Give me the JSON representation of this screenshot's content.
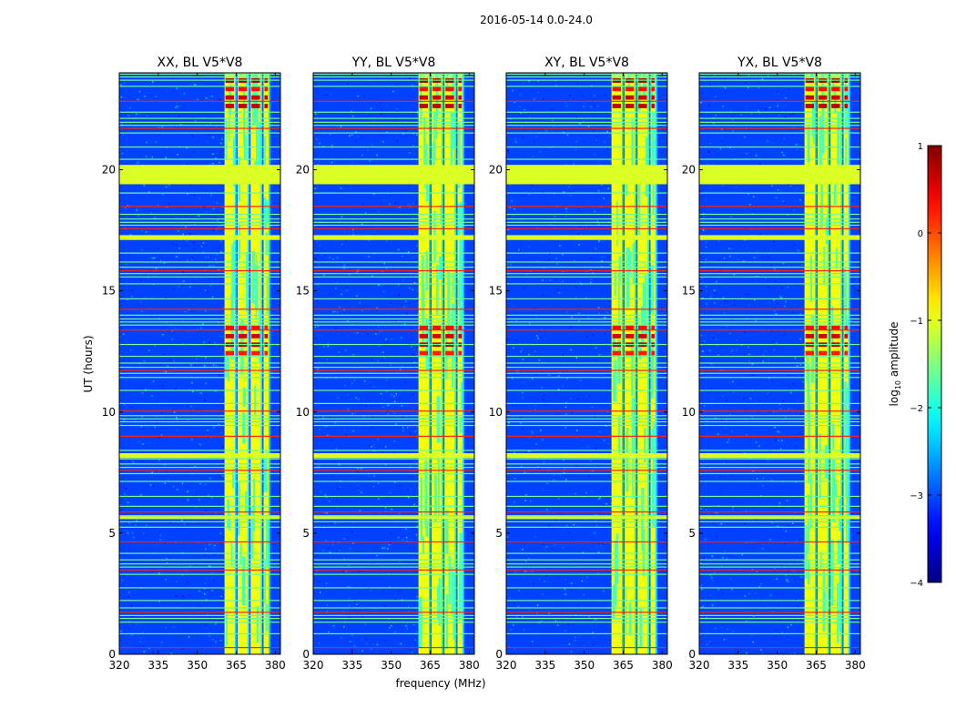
{
  "figure": {
    "suptitle": "2016-05-14 0.0-24.0"
  },
  "chart_data": {
    "type": "heatmap",
    "title": "2016-05-14 0.0-24.0",
    "xlabel": "frequency (MHz)",
    "ylabel": "UT (hours)",
    "xlim": [
      320,
      382
    ],
    "ylim": [
      0,
      24
    ],
    "x_ticks": [
      320,
      335,
      350,
      365,
      380
    ],
    "y_ticks": [
      0,
      5,
      10,
      15,
      20
    ],
    "y_tick_labels": [
      "0",
      "5",
      "10",
      "15",
      "20"
    ],
    "x_tick_labels": [
      "320",
      "335",
      "350",
      "365",
      "380"
    ],
    "panels": [
      {
        "name": "XX",
        "title": "XX, BL V5*V8",
        "band_start": 360.5
      },
      {
        "name": "YY",
        "title": "YY, BL V5*V8",
        "band_start": 360.5
      },
      {
        "name": "XY",
        "title": "XY, BL V5*V8",
        "band_start": 360.5
      },
      {
        "name": "YX",
        "title": "YX, BL V5*V8",
        "band_start": 360.5
      }
    ],
    "signal_band_mhz": [
      360.5,
      377.5
    ],
    "signal_columns_mhz": [
      [
        360.5,
        364.5
      ],
      [
        365.5,
        369.5
      ],
      [
        370.5,
        374.5
      ],
      [
        375.5,
        377.5
      ]
    ],
    "flagged_ut_hours": [
      [
        19.4,
        20.2
      ],
      [
        17.1,
        17.3
      ],
      [
        8.1,
        8.3
      ],
      [
        5.6,
        5.7
      ]
    ],
    "strong_ut_hours": [
      [
        12.3,
        13.7
      ],
      [
        22.5,
        23.9
      ]
    ],
    "colorbar": {
      "label": "log10 amplitude",
      "label_prefix": "log",
      "label_sub": "10",
      "label_suffix": " amplitude",
      "range": [
        -4,
        1
      ],
      "ticks": [
        1,
        0,
        -1,
        -2,
        -3,
        -4
      ],
      "tick_labels": [
        "1",
        "0",
        "−1",
        "−2",
        "−3",
        "−4"
      ],
      "colormap": "jet"
    }
  }
}
